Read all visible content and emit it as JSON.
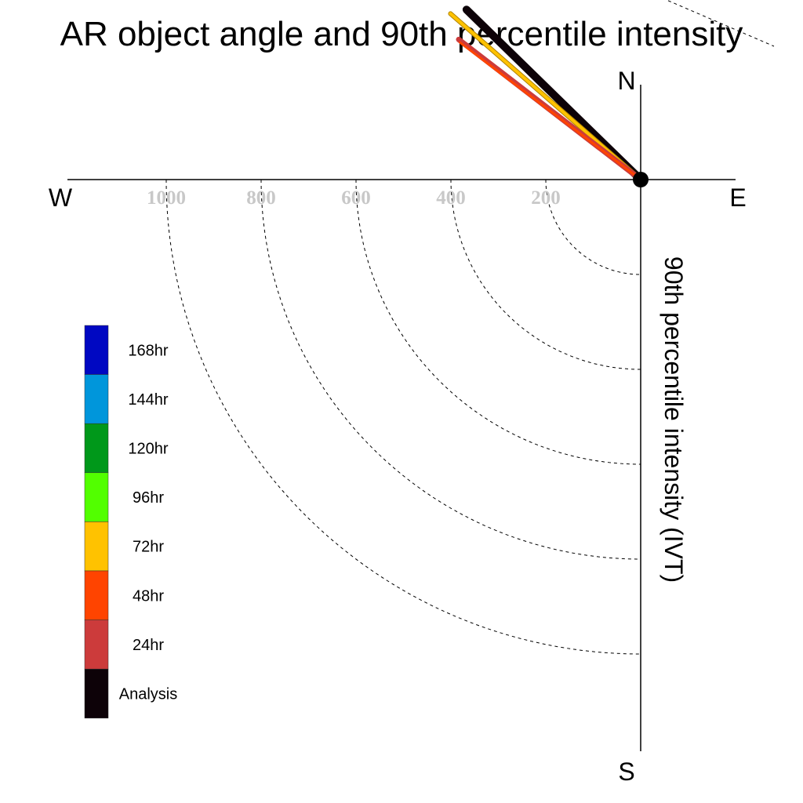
{
  "chart_data": {
    "type": "polar-vector",
    "title": "AR object angle and 90th percentile intensity",
    "ylabel": "90th percentile intensity (IVT)",
    "directions": {
      "north": "N",
      "south": "S",
      "east": "E",
      "west": "W"
    },
    "ring_values": [
      200,
      400,
      600,
      800,
      1000
    ],
    "ring_labels": [
      "200",
      "400",
      "600",
      "800",
      "1000"
    ],
    "r_max": 1200,
    "angle_convention": "degrees from north toward west",
    "series": [
      {
        "name": "Analysis",
        "color": "#0d0208",
        "angle": 45.7,
        "intensity": 513
      },
      {
        "name": "24hr",
        "color": "#cc3b3b",
        "angle": 52.4,
        "intensity": 484
      },
      {
        "name": "48hr",
        "color": "#ff4400",
        "angle": 52.8,
        "intensity": 478
      },
      {
        "name": "72hr",
        "color": "#ffc200",
        "angle": 48.9,
        "intensity": 532
      }
    ],
    "legend": {
      "placement": "left",
      "entries": [
        {
          "label": "168hr",
          "color": "#0008c2"
        },
        {
          "label": "144hr",
          "color": "#0096db"
        },
        {
          "label": "120hr",
          "color": "#00981a"
        },
        {
          "label": "96hr",
          "color": "#52ff00"
        },
        {
          "label": "72hr",
          "color": "#ffc200"
        },
        {
          "label": "48hr",
          "color": "#ff4400"
        },
        {
          "label": "24hr",
          "color": "#cc3b3b"
        },
        {
          "label": "Analysis",
          "color": "#0d0208"
        }
      ]
    }
  }
}
